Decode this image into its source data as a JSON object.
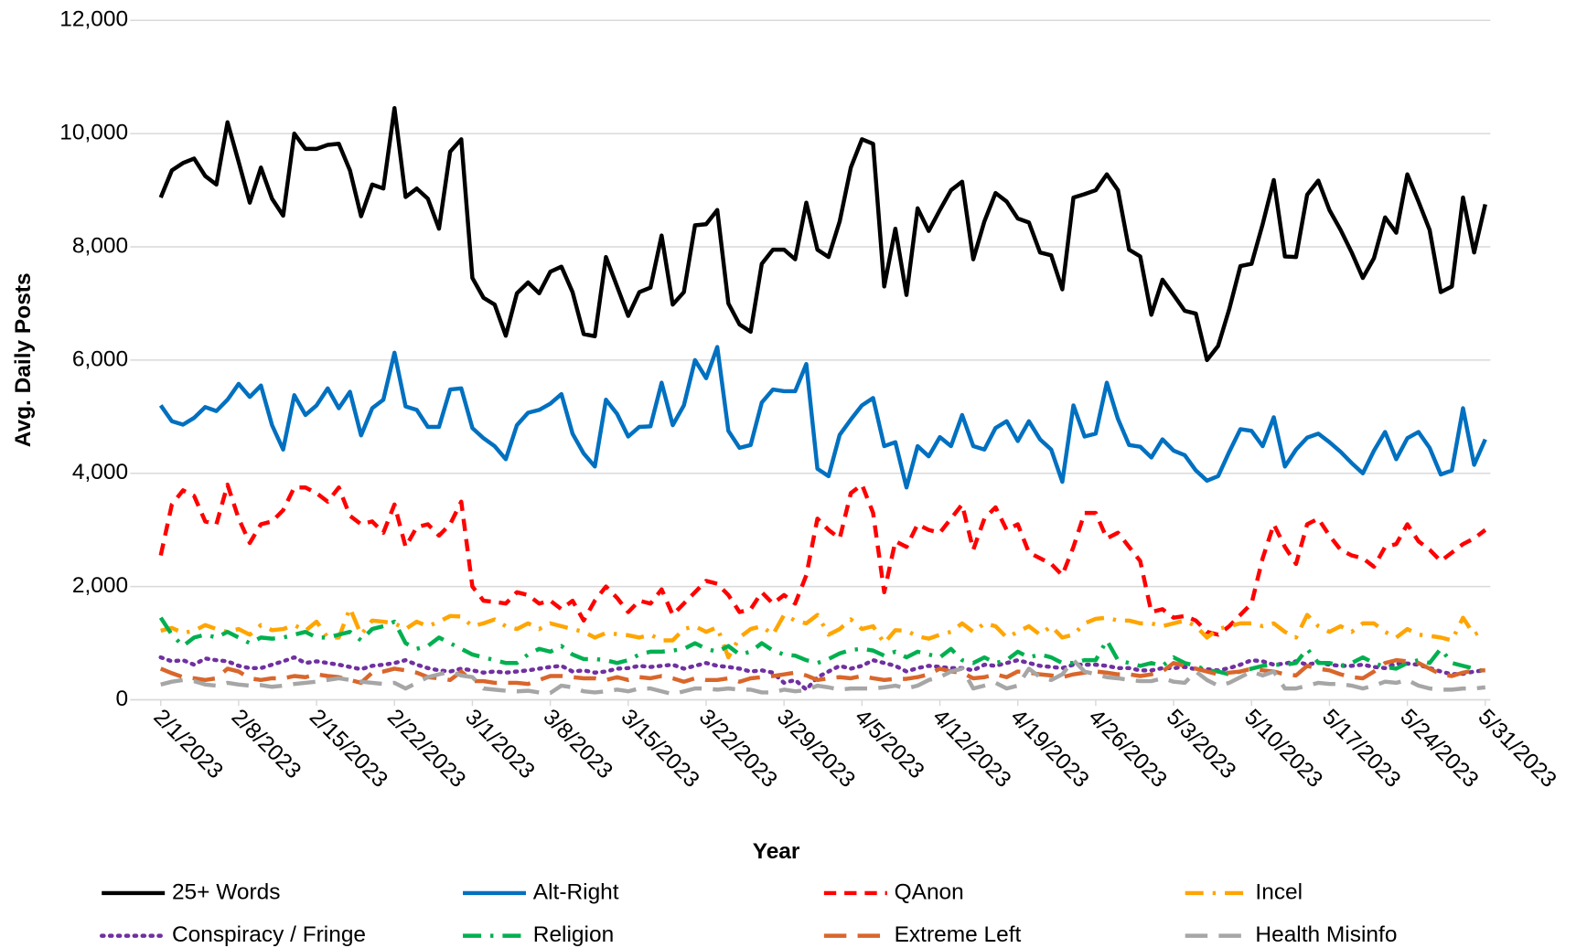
{
  "chart_data": {
    "type": "line",
    "x_label": "Year",
    "y_label": "Avg. Daily Posts",
    "ylim": [
      0,
      12000
    ],
    "yticks": [
      0,
      {
        "value": 2000,
        "label": "2,000"
      },
      {
        "value": 4000,
        "label": "4,000"
      },
      {
        "value": 6000,
        "label": "6,000"
      },
      {
        "value": 8000,
        "label": "8,000"
      },
      {
        "value": 10000,
        "label": "10,000"
      },
      {
        "value": 12000,
        "label": "12,000"
      }
    ],
    "grid": true,
    "legend": "bottom",
    "x": [
      "2/1/2023",
      "2/2/2023",
      "2/3/2023",
      "2/4/2023",
      "2/5/2023",
      "2/6/2023",
      "2/7/2023",
      "2/8/2023",
      "2/9/2023",
      "2/10/2023",
      "2/11/2023",
      "2/12/2023",
      "2/13/2023",
      "2/14/2023",
      "2/15/2023",
      "2/16/2023",
      "2/17/2023",
      "2/18/2023",
      "2/19/2023",
      "2/20/2023",
      "2/21/2023",
      "2/22/2023",
      "2/23/2023",
      "2/24/2023",
      "2/25/2023",
      "2/26/2023",
      "2/27/2023",
      "2/28/2023",
      "3/1/2023",
      "3/2/2023",
      "3/3/2023",
      "3/4/2023",
      "3/5/2023",
      "3/6/2023",
      "3/7/2023",
      "3/8/2023",
      "3/9/2023",
      "3/10/2023",
      "3/11/2023",
      "3/12/2023",
      "3/13/2023",
      "3/14/2023",
      "3/15/2023",
      "3/16/2023",
      "3/17/2023",
      "3/18/2023",
      "3/19/2023",
      "3/20/2023",
      "3/21/2023",
      "3/22/2023",
      "3/23/2023",
      "3/24/2023",
      "3/25/2023",
      "3/26/2023",
      "3/27/2023",
      "3/28/2023",
      "3/29/2023",
      "3/30/2023",
      "3/31/2023",
      "4/1/2023",
      "4/2/2023",
      "4/3/2023",
      "4/4/2023",
      "4/5/2023",
      "4/6/2023",
      "4/7/2023",
      "4/8/2023",
      "4/9/2023",
      "4/10/2023",
      "4/11/2023",
      "4/12/2023",
      "4/13/2023",
      "4/14/2023",
      "4/15/2023",
      "4/16/2023",
      "4/17/2023",
      "4/18/2023",
      "4/19/2023",
      "4/20/2023",
      "4/21/2023",
      "4/22/2023",
      "4/23/2023",
      "4/24/2023",
      "4/25/2023",
      "4/26/2023",
      "4/27/2023",
      "4/28/2023",
      "4/29/2023",
      "4/30/2023",
      "5/1/2023",
      "5/2/2023",
      "5/3/2023",
      "5/4/2023",
      "5/5/2023",
      "5/6/2023",
      "5/7/2023",
      "5/8/2023",
      "5/9/2023",
      "5/10/2023",
      "5/11/2023",
      "5/12/2023",
      "5/13/2023",
      "5/14/2023",
      "5/15/2023",
      "5/16/2023",
      "5/17/2023",
      "5/18/2023",
      "5/19/2023",
      "5/20/2023",
      "5/21/2023",
      "5/22/2023",
      "5/23/2023",
      "5/24/2023",
      "5/25/2023",
      "5/26/2023",
      "5/27/2023",
      "5/28/2023",
      "5/29/2023",
      "5/30/2023",
      "5/31/2023"
    ],
    "xticks": [
      "2/1/2023",
      "2/8/2023",
      "2/15/2023",
      "2/22/2023",
      "3/1/2023",
      "3/8/2023",
      "3/15/2023",
      "3/22/2023",
      "3/29/2023",
      "4/5/2023",
      "4/12/2023",
      "4/19/2023",
      "4/26/2023",
      "5/3/2023",
      "5/10/2023",
      "5/17/2023",
      "5/24/2023",
      "5/31/2023"
    ],
    "series": [
      {
        "name": "25+ Words",
        "color": "#000000",
        "style": "solid",
        "values": [
          8870,
          9350,
          9480,
          9560,
          9250,
          9100,
          10200,
          9500,
          8780,
          9400,
          8850,
          8550,
          10000,
          9730,
          9730,
          9800,
          9820,
          9350,
          8540,
          9100,
          9030,
          10450,
          8880,
          9030,
          8850,
          8320,
          9680,
          9900,
          7450,
          7100,
          6980,
          6430,
          7180,
          7370,
          7180,
          7560,
          7650,
          7200,
          6460,
          6420,
          7820,
          7300,
          6780,
          7200,
          7280,
          8200,
          6980,
          7200,
          8380,
          8400,
          8650,
          7000,
          6630,
          6500,
          7700,
          7950,
          7950,
          7780,
          8780,
          7950,
          7820,
          8450,
          9400,
          9900,
          9820,
          7300,
          8320,
          7150,
          8680,
          8280,
          8650,
          9000,
          9150,
          7780,
          8450,
          8950,
          8800,
          8500,
          8430,
          7900,
          7850,
          7250,
          8870,
          8930,
          9000,
          9280,
          9000,
          7950,
          7830,
          6800,
          7420,
          7150,
          6870,
          6820,
          6000,
          6250,
          6900,
          7660,
          7700,
          8400,
          9180,
          7830,
          7820,
          8920,
          9170,
          8650,
          8300,
          7900,
          7450,
          7800,
          8520,
          8250,
          9280,
          8800,
          8300,
          7200,
          7300,
          8870,
          7900,
          8750
        ]
      },
      {
        "name": "Alt-Right",
        "color": "#0070c0",
        "style": "solid",
        "values": [
          5200,
          4920,
          4860,
          4980,
          5170,
          5100,
          5300,
          5580,
          5350,
          5550,
          4850,
          4420,
          5380,
          5030,
          5200,
          5500,
          5150,
          5440,
          4670,
          5150,
          5300,
          6130,
          5180,
          5120,
          4820,
          4820,
          5480,
          5500,
          4800,
          4620,
          4480,
          4250,
          4850,
          5070,
          5120,
          5230,
          5400,
          4700,
          4350,
          4120,
          5300,
          5050,
          4650,
          4820,
          4830,
          5600,
          4850,
          5200,
          6000,
          5680,
          6230,
          4750,
          4450,
          4500,
          5250,
          5480,
          5450,
          5450,
          5930,
          4080,
          3950,
          4680,
          4950,
          5200,
          5330,
          4480,
          4550,
          3750,
          4480,
          4300,
          4640,
          4480,
          5030,
          4480,
          4420,
          4800,
          4920,
          4570,
          4920,
          4600,
          4420,
          3850,
          5200,
          4650,
          4700,
          5600,
          4960,
          4500,
          4470,
          4280,
          4600,
          4400,
          4320,
          4050,
          3870,
          3950,
          4380,
          4780,
          4750,
          4480,
          4990,
          4120,
          4420,
          4630,
          4700,
          4550,
          4380,
          4180,
          4000,
          4400,
          4730,
          4250,
          4620,
          4730,
          4450,
          3980,
          4050,
          5150,
          4150,
          4600
        ]
      },
      {
        "name": "QAnon",
        "color": "#ff0000",
        "style": "dash",
        "values": [
          2550,
          3450,
          3700,
          3600,
          3150,
          3100,
          3800,
          3200,
          2770,
          3100,
          3150,
          3350,
          3750,
          3750,
          3650,
          3500,
          3750,
          3250,
          3100,
          3150,
          2950,
          3450,
          2700,
          3050,
          3100,
          2900,
          3100,
          3500,
          2000,
          1750,
          1730,
          1700,
          1900,
          1850,
          1700,
          1750,
          1600,
          1750,
          1400,
          1750,
          2000,
          1800,
          1550,
          1750,
          1700,
          1950,
          1500,
          1700,
          1900,
          2100,
          2050,
          1850,
          1550,
          1600,
          1900,
          1700,
          1850,
          1700,
          2200,
          3200,
          3000,
          2850,
          3650,
          3800,
          3300,
          1900,
          2800,
          2700,
          3100,
          3000,
          2950,
          3200,
          3450,
          2650,
          3200,
          3400,
          3000,
          3100,
          2600,
          2500,
          2400,
          2200,
          2700,
          3300,
          3300,
          2850,
          2950,
          2700,
          2450,
          1550,
          1600,
          1450,
          1480,
          1400,
          1200,
          1150,
          1300,
          1500,
          1700,
          2500,
          3100,
          2700,
          2400,
          3100,
          3200,
          2900,
          2650,
          2550,
          2500,
          2350,
          2700,
          2750,
          3100,
          2800,
          2650,
          2450,
          2600,
          2750,
          2850,
          3000
        ]
      },
      {
        "name": "Incel",
        "color": "#ffa500",
        "style": "dash-dot",
        "values": [
          1220,
          1270,
          1180,
          1220,
          1320,
          1250,
          1200,
          1250,
          1150,
          1320,
          1230,
          1250,
          1320,
          1220,
          1380,
          1100,
          1100,
          1620,
          1150,
          1400,
          1380,
          1350,
          1250,
          1380,
          1300,
          1380,
          1480,
          1470,
          1300,
          1350,
          1420,
          1300,
          1250,
          1350,
          1250,
          1350,
          1300,
          1250,
          1200,
          1100,
          1180,
          1160,
          1140,
          1100,
          1150,
          1050,
          1050,
          1250,
          1300,
          1200,
          1280,
          750,
          1100,
          1250,
          1300,
          1150,
          1500,
          1400,
          1350,
          1500,
          1150,
          1250,
          1420,
          1250,
          1300,
          1000,
          1230,
          1220,
          1120,
          1080,
          1150,
          1200,
          1350,
          1200,
          1350,
          1300,
          1100,
          1200,
          1300,
          1150,
          1300,
          1100,
          1150,
          1350,
          1430,
          1450,
          1400,
          1400,
          1350,
          1350,
          1300,
          1350,
          1400,
          1300,
          1100,
          1250,
          1300,
          1350,
          1350,
          1300,
          1350,
          1200,
          1100,
          1500,
          1300,
          1200,
          1300,
          1200,
          1350,
          1350,
          1200,
          1100,
          1250,
          1150,
          1130,
          1100,
          1050,
          1450,
          1150,
          1250
        ]
      },
      {
        "name": "Conspiracy / Fringe",
        "color": "#7030a0",
        "style": "dot",
        "values": [
          750,
          680,
          700,
          620,
          730,
          700,
          680,
          600,
          560,
          560,
          620,
          680,
          750,
          650,
          680,
          650,
          620,
          580,
          540,
          600,
          620,
          650,
          700,
          620,
          560,
          520,
          500,
          550,
          520,
          480,
          500,
          480,
          500,
          520,
          550,
          580,
          600,
          500,
          520,
          480,
          500,
          550,
          560,
          600,
          580,
          600,
          620,
          550,
          600,
          650,
          600,
          580,
          550,
          500,
          520,
          480,
          300,
          350,
          180,
          400,
          500,
          600,
          550,
          600,
          700,
          650,
          600,
          500,
          560,
          600,
          580,
          560,
          560,
          520,
          620,
          600,
          650,
          700,
          650,
          600,
          580,
          560,
          620,
          620,
          620,
          600,
          560,
          560,
          520,
          520,
          560,
          560,
          580,
          540,
          540,
          520,
          560,
          620,
          700,
          680,
          620,
          640,
          680,
          620,
          660,
          620,
          600,
          600,
          620,
          580,
          560,
          640,
          640,
          620,
          560,
          500,
          450,
          460,
          500,
          520
        ]
      },
      {
        "name": "Religion",
        "color": "#00b050",
        "style": "dash-dot",
        "values": [
          1450,
          1150,
          950,
          1100,
          1150,
          1100,
          1200,
          1100,
          1000,
          1100,
          1080,
          1100,
          1150,
          1200,
          1100,
          1100,
          1150,
          1200,
          1050,
          1250,
          1300,
          1380,
          1000,
          900,
          950,
          1100,
          1000,
          900,
          800,
          750,
          700,
          650,
          650,
          800,
          900,
          850,
          950,
          800,
          720,
          720,
          700,
          650,
          700,
          800,
          850,
          850,
          870,
          900,
          1000,
          900,
          850,
          950,
          800,
          850,
          1000,
          870,
          800,
          780,
          700,
          650,
          720,
          820,
          880,
          900,
          870,
          780,
          850,
          750,
          850,
          800,
          750,
          900,
          700,
          650,
          750,
          650,
          700,
          850,
          750,
          800,
          750,
          650,
          650,
          700,
          700,
          1050,
          700,
          650,
          600,
          650,
          600,
          750,
          650,
          600,
          520,
          500,
          450,
          500,
          550,
          600,
          620,
          620,
          650,
          900,
          650,
          650,
          600,
          650,
          750,
          650,
          580,
          550,
          650,
          700,
          650,
          900,
          650,
          600,
          550,
          500
        ]
      },
      {
        "name": "Extreme Left",
        "color": "#d9662b",
        "style": "long-dash",
        "values": [
          550,
          470,
          400,
          380,
          350,
          380,
          550,
          500,
          380,
          350,
          380,
          380,
          420,
          400,
          450,
          420,
          400,
          350,
          300,
          480,
          500,
          550,
          520,
          480,
          400,
          380,
          350,
          500,
          330,
          330,
          300,
          300,
          300,
          280,
          350,
          420,
          420,
          400,
          380,
          380,
          350,
          400,
          350,
          400,
          380,
          420,
          380,
          320,
          380,
          350,
          350,
          380,
          320,
          380,
          400,
          420,
          450,
          480,
          430,
          350,
          380,
          400,
          380,
          420,
          380,
          350,
          370,
          370,
          400,
          450,
          550,
          500,
          480,
          380,
          400,
          450,
          400,
          500,
          480,
          450,
          430,
          400,
          450,
          480,
          500,
          480,
          450,
          450,
          420,
          450,
          500,
          650,
          600,
          550,
          500,
          450,
          480,
          500,
          550,
          520,
          500,
          450,
          430,
          600,
          550,
          520,
          450,
          400,
          380,
          500,
          650,
          700,
          680,
          650,
          550,
          450,
          420,
          480,
          520,
          520
        ]
      },
      {
        "name": "Health Misinfo",
        "color": "#a6a6a6",
        "style": "long-dash",
        "values": [
          270,
          320,
          350,
          330,
          270,
          250,
          300,
          270,
          250,
          260,
          230,
          250,
          280,
          300,
          320,
          350,
          380,
          350,
          320,
          300,
          280,
          300,
          200,
          300,
          400,
          450,
          500,
          430,
          400,
          200,
          180,
          160,
          150,
          160,
          130,
          120,
          250,
          220,
          150,
          130,
          150,
          180,
          150,
          200,
          200,
          150,
          100,
          150,
          200,
          200,
          180,
          200,
          180,
          180,
          130,
          130,
          180,
          150,
          170,
          250,
          220,
          180,
          200,
          200,
          200,
          220,
          250,
          200,
          250,
          350,
          400,
          500,
          550,
          200,
          250,
          300,
          200,
          250,
          550,
          400,
          350,
          450,
          700,
          500,
          450,
          400,
          380,
          350,
          330,
          330,
          380,
          320,
          300,
          500,
          350,
          250,
          300,
          400,
          500,
          430,
          500,
          200,
          200,
          250,
          300,
          280,
          280,
          250,
          200,
          250,
          320,
          300,
          350,
          250,
          200,
          180,
          180,
          200,
          200,
          220
        ]
      }
    ]
  }
}
